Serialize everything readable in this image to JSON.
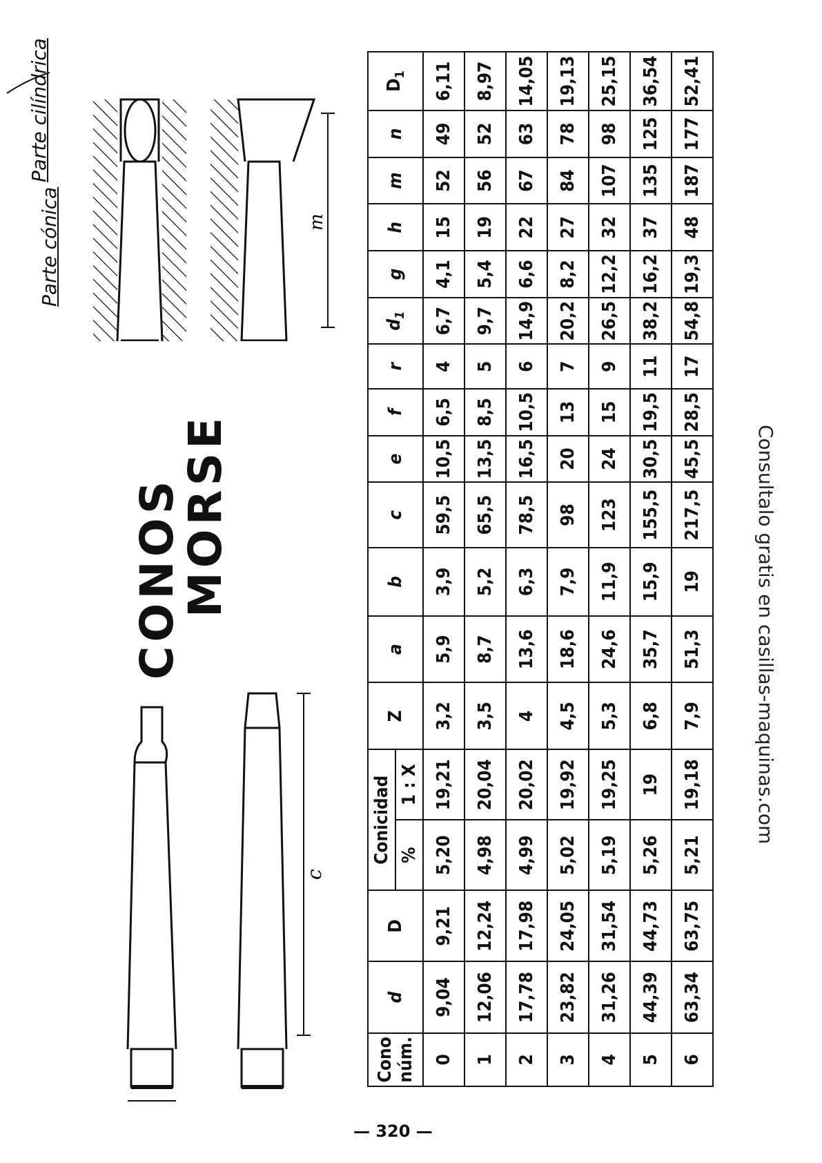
{
  "title_line1": "CONOS",
  "title_line2": "MORSE",
  "label_parte_cilindrica": "Parte cilíndrica",
  "label_parte_conica": "Parte cónica",
  "watermark": "Consultalo gratis en casillas-maquinas.com",
  "page_number": "— 320 —",
  "table": {
    "header_group_conicidad": "Conicidad",
    "headers": {
      "cono": "Cono núm.",
      "d": "d",
      "D": "D",
      "pct": "%",
      "ratio": "1 : X",
      "Z": "Z",
      "a": "a",
      "b": "b",
      "c": "c",
      "e": "e",
      "f": "f",
      "r": "r",
      "d1": "d",
      "d1_sub": "1",
      "g": "g",
      "h": "h",
      "m": "m",
      "n": "n",
      "D1": "D",
      "D1_sub": "1"
    },
    "rows": [
      {
        "cono": "0",
        "d": "9,04",
        "D": "9,21",
        "pct": "5,20",
        "ratio": "19,21",
        "Z": "3,2",
        "a": "5,9",
        "b": "3,9",
        "c": "59,5",
        "e": "10,5",
        "f": "6,5",
        "r": "4",
        "d1": "6,7",
        "g": "4,1",
        "h": "15",
        "m": "52",
        "n": "49",
        "D1": "6,11"
      },
      {
        "cono": "1",
        "d": "12,06",
        "D": "12,24",
        "pct": "4,98",
        "ratio": "20,04",
        "Z": "3,5",
        "a": "8,7",
        "b": "5,2",
        "c": "65,5",
        "e": "13,5",
        "f": "8,5",
        "r": "5",
        "d1": "9,7",
        "g": "5,4",
        "h": "19",
        "m": "56",
        "n": "52",
        "D1": "8,97"
      },
      {
        "cono": "2",
        "d": "17,78",
        "D": "17,98",
        "pct": "4,99",
        "ratio": "20,02",
        "Z": "4",
        "a": "13,6",
        "b": "6,3",
        "c": "78,5",
        "e": "16,5",
        "f": "10,5",
        "r": "6",
        "d1": "14,9",
        "g": "6,6",
        "h": "22",
        "m": "67",
        "n": "63",
        "D1": "14,05"
      },
      {
        "cono": "3",
        "d": "23,82",
        "D": "24,05",
        "pct": "5,02",
        "ratio": "19,92",
        "Z": "4,5",
        "a": "18,6",
        "b": "7,9",
        "c": "98",
        "e": "20",
        "f": "13",
        "r": "7",
        "d1": "20,2",
        "g": "8,2",
        "h": "27",
        "m": "84",
        "n": "78",
        "D1": "19,13"
      },
      {
        "cono": "4",
        "d": "31,26",
        "D": "31,54",
        "pct": "5,19",
        "ratio": "19,25",
        "Z": "5,3",
        "a": "24,6",
        "b": "11,9",
        "c": "123",
        "e": "24",
        "f": "15",
        "r": "9",
        "d1": "26,5",
        "g": "12,2",
        "h": "32",
        "m": "107",
        "n": "98",
        "D1": "25,15"
      },
      {
        "cono": "5",
        "d": "44,39",
        "D": "44,73",
        "pct": "5,26",
        "ratio": "19",
        "Z": "6,8",
        "a": "35,7",
        "b": "15,9",
        "c": "155,5",
        "e": "30,5",
        "f": "19,5",
        "r": "11",
        "d1": "38,2",
        "g": "16,2",
        "h": "37",
        "m": "135",
        "n": "125",
        "D1": "36,54"
      },
      {
        "cono": "6",
        "d": "63,34",
        "D": "63,75",
        "pct": "5,21",
        "ratio": "19,18",
        "Z": "7,9",
        "a": "51,3",
        "b": "19",
        "c": "217,5",
        "e": "45,5",
        "f": "28,5",
        "r": "17",
        "d1": "54,8",
        "g": "19,3",
        "h": "48",
        "m": "187",
        "n": "177",
        "D1": "52,41"
      }
    ]
  }
}
